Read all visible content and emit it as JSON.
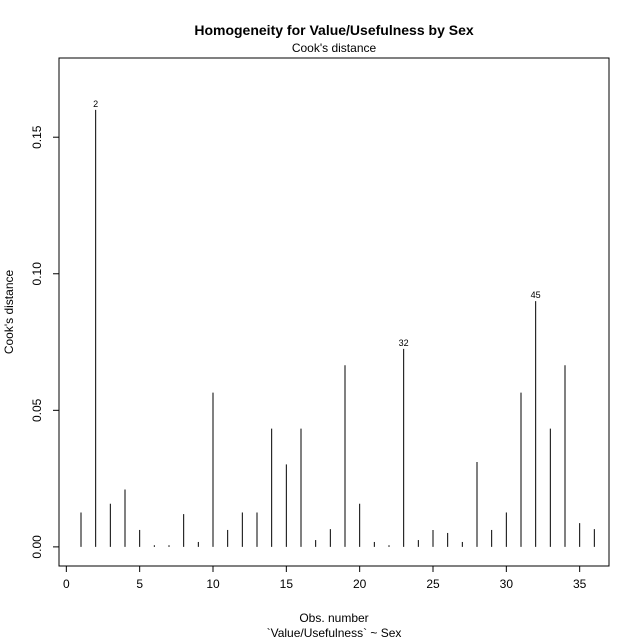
{
  "chart_data": {
    "type": "bar",
    "title": "Homogeneity for Value/Usefulness by Sex",
    "subtitle": "Cook's distance",
    "xlabel": "Obs. number",
    "xlabel2": "`Value/Usefulness` ~ Sex",
    "ylabel": "Cook's distance",
    "xlim": [
      -0.5,
      37
    ],
    "ylim": [
      -0.007,
      0.179
    ],
    "x_ticks": [
      0,
      5,
      10,
      15,
      20,
      25,
      30,
      35
    ],
    "x_tick_labels": [
      "0",
      "5",
      "10",
      "15",
      "20",
      "25",
      "30",
      "35"
    ],
    "y_ticks": [
      0.0,
      0.05,
      0.1,
      0.15
    ],
    "y_tick_labels": [
      "0.00",
      "0.05",
      "0.10",
      "0.15"
    ],
    "grid": false,
    "x": [
      1,
      2,
      3,
      4,
      5,
      6,
      7,
      8,
      9,
      10,
      11,
      12,
      13,
      14,
      15,
      16,
      17,
      18,
      19,
      20,
      21,
      22,
      23,
      24,
      25,
      26,
      27,
      28,
      29,
      30,
      31,
      32,
      33,
      34,
      35,
      36
    ],
    "values": [
      0.0126,
      0.16,
      0.0158,
      0.021,
      0.0062,
      0.0006,
      0.0006,
      0.012,
      0.0018,
      0.0565,
      0.0062,
      0.0126,
      0.0126,
      0.0433,
      0.0302,
      0.0433,
      0.0025,
      0.0065,
      0.0665,
      0.0158,
      0.0018,
      0.0006,
      0.0725,
      0.0025,
      0.0062,
      0.0051,
      0.0018,
      0.0311,
      0.0062,
      0.0126,
      0.0565,
      0.09,
      0.0433,
      0.0665,
      0.0087,
      0.0065
    ],
    "point_labels": [
      {
        "x": 2,
        "y": 0.16,
        "text": "2"
      },
      {
        "x": 23,
        "y": 0.0725,
        "text": "32"
      },
      {
        "x": 32,
        "y": 0.09,
        "text": "45"
      }
    ]
  }
}
